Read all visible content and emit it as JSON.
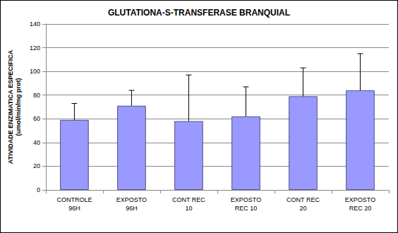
{
  "chart_data": {
    "type": "bar",
    "title": "GLUTATIONA-S-TRANSFERASE BRANQUIAL",
    "y_label": "ATIVIDADE ENZIMATICA ESPECIFICA\n(umol/min/mg prot)",
    "categories": [
      "CONTROLE\n96H",
      "EXPOSTO\n96H",
      "CONT REC\n10",
      "EXPOSTO\nREC 10",
      "CONT REC\n20",
      "EXPOSTO\nREC 20"
    ],
    "values": [
      59,
      71,
      58,
      62,
      79,
      84
    ],
    "errors": [
      14,
      13,
      39,
      25,
      24,
      31
    ],
    "color": "#9999ff",
    "ylim": [
      0,
      140
    ],
    "yticks": [
      0,
      20,
      40,
      60,
      80,
      100,
      120,
      140
    ],
    "grid": true
  }
}
